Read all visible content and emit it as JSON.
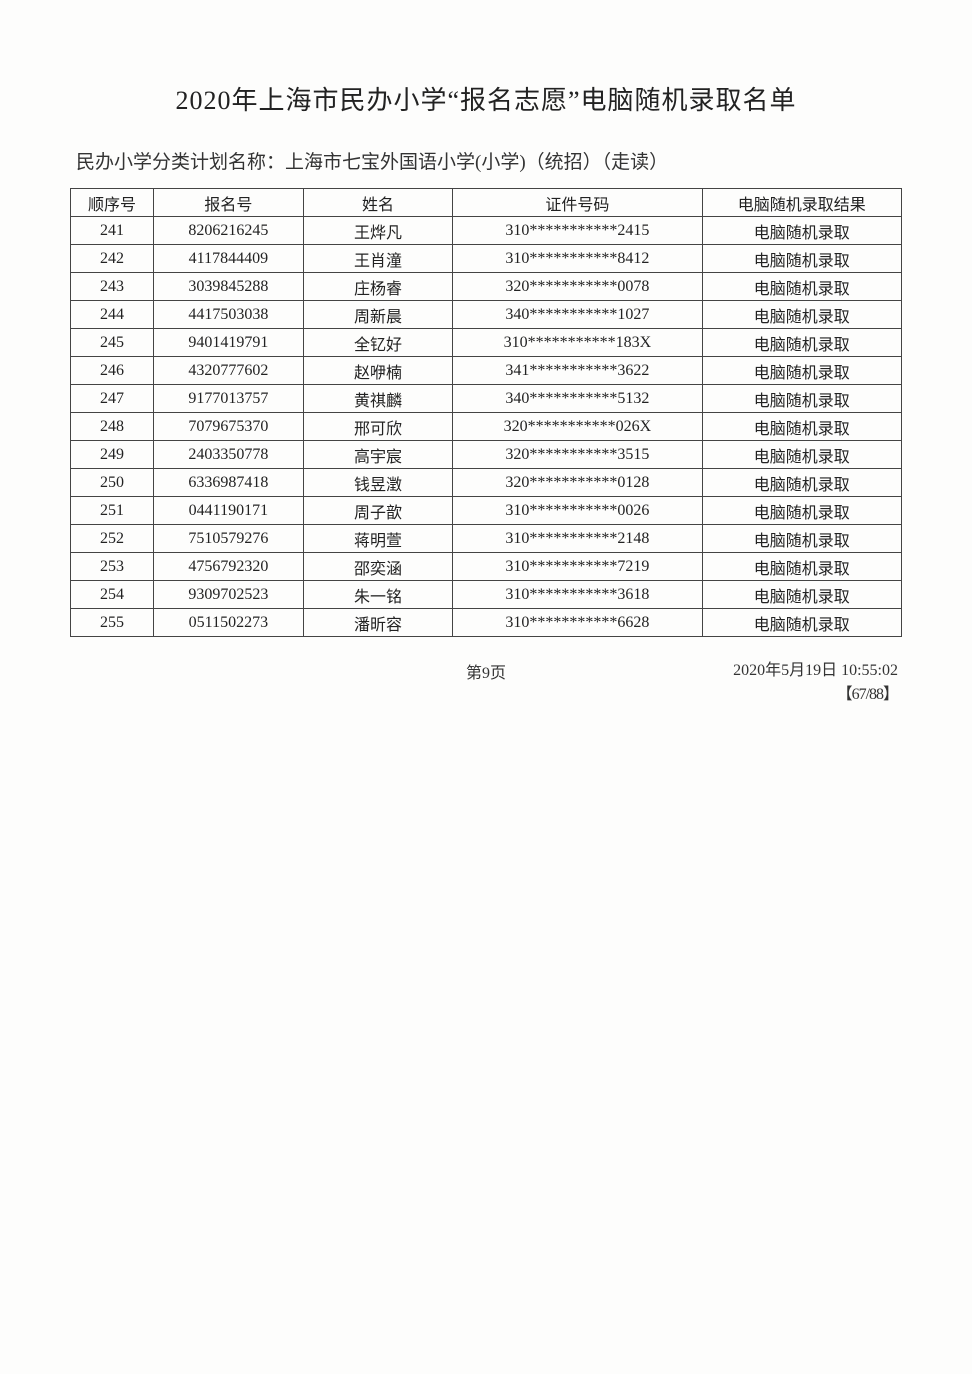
{
  "document": {
    "title": "2020年上海市民办小学“报名志愿”电脑随机录取名单",
    "subtitle_label": "民办小学分类计划名称：",
    "subtitle_value": "上海市七宝外国语小学(小学)（统招）（走读）",
    "page_label": "第9页",
    "timestamp": "2020年5月19日 10:55:02",
    "page_bracket": "【67/88】"
  },
  "table": {
    "type": "table",
    "columns": [
      "顺序号",
      "报名号",
      "姓名",
      "证件号码",
      "电脑随机录取结果"
    ],
    "column_widths_pct": [
      10,
      18,
      18,
      30,
      24
    ],
    "border_color": "#444444",
    "text_color": "#222222",
    "background_color": "#fdfdfc",
    "font_size_pt": 12,
    "rows": [
      [
        "241",
        "8206216245",
        "王烨凡",
        "310***********2415",
        "电脑随机录取"
      ],
      [
        "242",
        "4117844409",
        "王肖潼",
        "310***********8412",
        "电脑随机录取"
      ],
      [
        "243",
        "3039845288",
        "庄杨睿",
        "320***********0078",
        "电脑随机录取"
      ],
      [
        "244",
        "4417503038",
        "周新晨",
        "340***********1027",
        "电脑随机录取"
      ],
      [
        "245",
        "9401419791",
        "全钇好",
        "310***********183X",
        "电脑随机录取"
      ],
      [
        "246",
        "4320777602",
        "赵咿楠",
        "341***********3622",
        "电脑随机录取"
      ],
      [
        "247",
        "9177013757",
        "黄祺麟",
        "340***********5132",
        "电脑随机录取"
      ],
      [
        "248",
        "7079675370",
        "邢可欣",
        "320***********026X",
        "电脑随机录取"
      ],
      [
        "249",
        "2403350778",
        "高宇宸",
        "320***********3515",
        "电脑随机录取"
      ],
      [
        "250",
        "6336987418",
        "钱昱澂",
        "320***********0128",
        "电脑随机录取"
      ],
      [
        "251",
        "0441190171",
        "周子歆",
        "310***********0026",
        "电脑随机录取"
      ],
      [
        "252",
        "7510579276",
        "蒋明萱",
        "310***********2148",
        "电脑随机录取"
      ],
      [
        "253",
        "4756792320",
        "邵奕涵",
        "310***********7219",
        "电脑随机录取"
      ],
      [
        "254",
        "9309702523",
        "朱一铭",
        "310***********3618",
        "电脑随机录取"
      ],
      [
        "255",
        "0511502273",
        "潘昕容",
        "310***********6628",
        "电脑随机录取"
      ]
    ]
  }
}
